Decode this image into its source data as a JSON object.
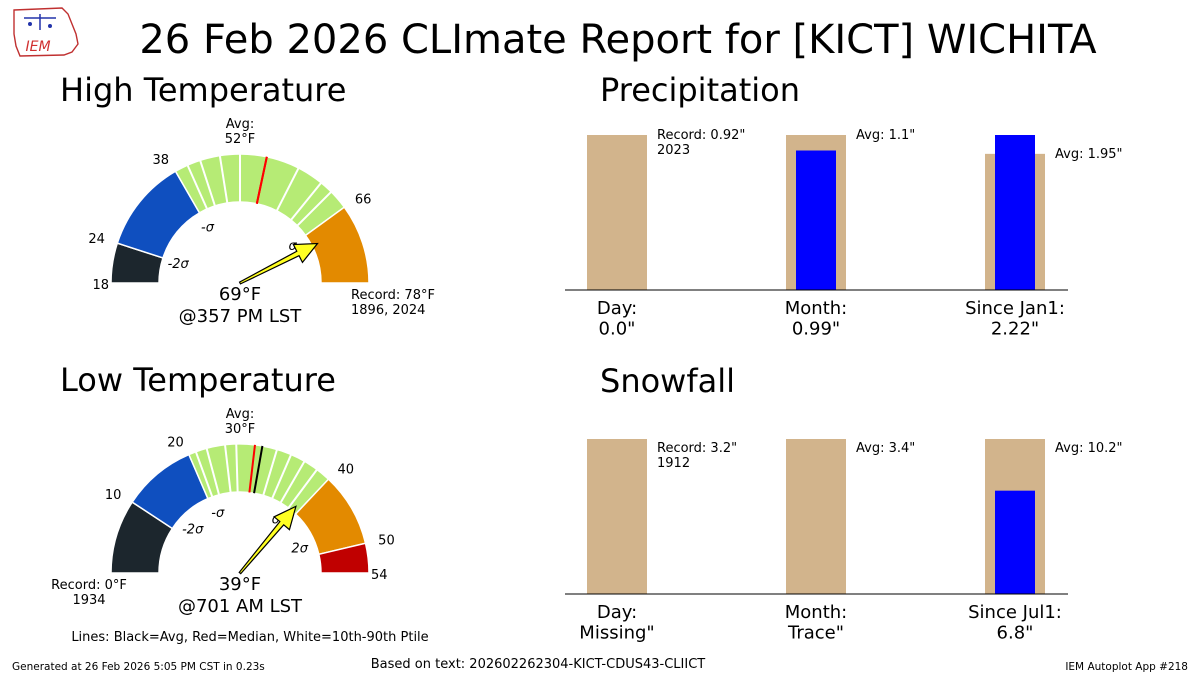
{
  "title": "26 Feb 2026 CLImate Report for [KICT] WICHITA",
  "logo_text": "IEM",
  "footer": {
    "generated": "Generated at 26 Feb 2026 5:05 PM CST in 0.23s",
    "based_on": "Based on text: 202602262304-KICT-CDUS43-CLIICT",
    "app": "IEM Autoplot App #218"
  },
  "legend_note": "Lines: Black=Avg, Red=Median, White=10th-90th Ptile",
  "colors": {
    "band_min_m2sd": "#1c262d",
    "band_m2sd_msd": "#0f4fbf",
    "band_msd_psd": "#b6eb75",
    "band_psd_p2sd": "#e38a00",
    "band_p2sd_max": "#c00000",
    "climo_bar": "#d2b48c",
    "obs_bar": "#0000ff",
    "arrow": "#ffff22",
    "median_line": "#ff0000",
    "avg_line": "#000000"
  },
  "chart_data": [
    {
      "type": "gauge",
      "title": "High Temperature",
      "range": [
        18,
        78
      ],
      "bands": [
        {
          "from": 18,
          "to": 24,
          "color": "#1c262d"
        },
        {
          "from": 24,
          "to": 38,
          "color": "#0f4fbf"
        },
        {
          "from": 38,
          "to": 66,
          "color": "#b6eb75"
        },
        {
          "from": 66,
          "to": 78,
          "color": "#e38a00"
        }
      ],
      "ticks": [
        {
          "value": 18,
          "label": "18"
        },
        {
          "value": 24,
          "label": "24"
        },
        {
          "value": 38,
          "label": "38"
        },
        {
          "value": 66,
          "label": "66"
        }
      ],
      "sigma_labels": [
        {
          "value": 24,
          "label": "-2σ"
        },
        {
          "value": 38,
          "label": "-σ"
        },
        {
          "value": 66,
          "label": "σ"
        }
      ],
      "white_lines": [
        40,
        42,
        45,
        48,
        57,
        61,
        63
      ],
      "median": 52,
      "average": 52,
      "avg_label": "Avg:\n52°F",
      "observed": 69,
      "observed_label": "69°F",
      "time_label": "@357 PM LST",
      "record_label": "Record: 78°F\n1896, 2024",
      "record_side": "right",
      "line_colors": {
        "median": "#ff0000",
        "average": "#ff0000"
      }
    },
    {
      "type": "gauge",
      "title": "Low Temperature",
      "range": [
        0,
        54
      ],
      "bands": [
        {
          "from": 0,
          "to": 10,
          "color": "#1c262d"
        },
        {
          "from": 10,
          "to": 20,
          "color": "#0f4fbf"
        },
        {
          "from": 20,
          "to": 40,
          "color": "#b6eb75"
        },
        {
          "from": 40,
          "to": 50,
          "color": "#e38a00"
        },
        {
          "from": 50,
          "to": 54,
          "color": "#c00000"
        }
      ],
      "ticks": [
        {
          "value": 10,
          "label": "10"
        },
        {
          "value": 20,
          "label": "20"
        },
        {
          "value": 40,
          "label": "40"
        },
        {
          "value": 50,
          "label": "50"
        },
        {
          "value": 54,
          "label": "54"
        }
      ],
      "sigma_labels": [
        {
          "value": 13,
          "label": "-2σ"
        },
        {
          "value": 21,
          "label": "-σ"
        },
        {
          "value": 37,
          "label": "σ"
        },
        {
          "value": 47,
          "label": "2σ"
        }
      ],
      "white_lines": [
        21,
        22.5,
        25,
        26.5,
        32,
        34,
        36,
        38
      ],
      "median": 29,
      "average": 30,
      "avg_label": "Avg:\n30°F",
      "observed": 39,
      "observed_label": "39°F",
      "time_label": "@701 AM LST",
      "record_label": "Record: 0°F\n1934",
      "record_side": "left"
    },
    {
      "type": "bar",
      "title": "Precipitation",
      "categories": [
        "Day:\n0.0\"",
        "Month:\n0.99\"",
        "Since Jan1:\n2.22\""
      ],
      "series": [
        {
          "role": "climo",
          "values": [
            0.92,
            1.1,
            1.95
          ]
        },
        {
          "role": "observed",
          "values": [
            0.0,
            0.99,
            2.22
          ]
        }
      ],
      "annotations": [
        "Record: 0.92\"\n2023",
        "Avg: 1.1\"",
        "Avg: 1.95\""
      ]
    },
    {
      "type": "bar",
      "title": "Snowfall",
      "categories": [
        "Day:\nMissing\"",
        "Month:\nTrace\"",
        "Since Jul1:\n6.8\""
      ],
      "series": [
        {
          "role": "climo",
          "values": [
            3.2,
            3.4,
            10.2
          ]
        },
        {
          "role": "observed",
          "values": [
            null,
            0,
            6.8
          ]
        }
      ],
      "annotations": [
        "Record: 3.2\"\n1912",
        "Avg: 3.4\"",
        "Avg: 10.2\""
      ]
    }
  ]
}
